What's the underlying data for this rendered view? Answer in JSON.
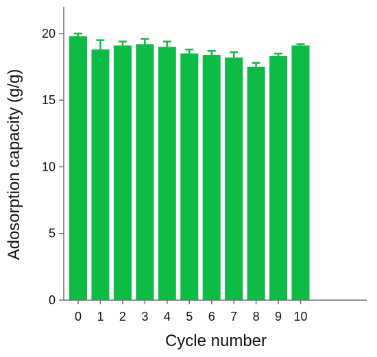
{
  "chart_data": {
    "type": "bar",
    "title": "",
    "xlabel": "Cycle number",
    "ylabel": "Adosorption capacity (g/g)",
    "categories": [
      "0",
      "1",
      "2",
      "3",
      "4",
      "5",
      "6",
      "7",
      "8",
      "9",
      "10"
    ],
    "values": [
      19.8,
      18.8,
      19.1,
      19.2,
      19.0,
      18.5,
      18.4,
      18.2,
      17.5,
      18.3,
      19.1
    ],
    "errors": [
      0.2,
      0.7,
      0.3,
      0.4,
      0.4,
      0.3,
      0.3,
      0.4,
      0.3,
      0.2,
      0.1
    ],
    "ylim": [
      0,
      22
    ],
    "yticks": [
      0,
      5,
      10,
      15,
      20
    ],
    "grid": false,
    "bar_color": "#0dbb45",
    "axis_color": "#6e6e6e"
  }
}
